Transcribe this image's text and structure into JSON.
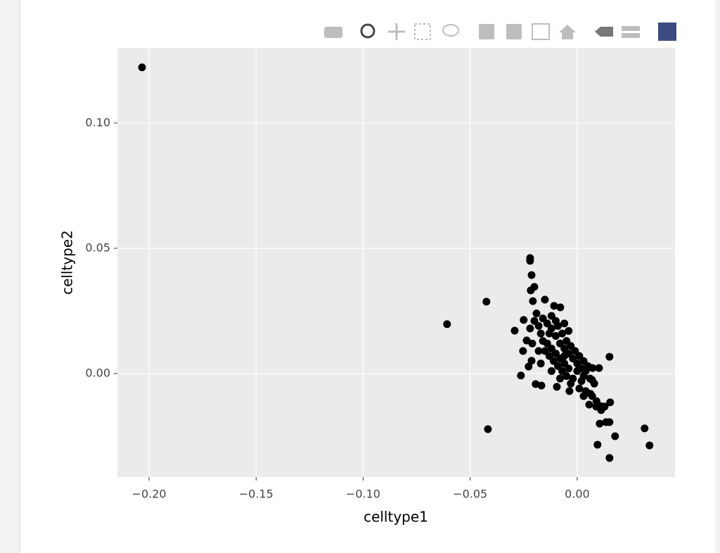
{
  "chart_data": {
    "type": "scatter",
    "xlabel": "celltype1",
    "ylabel": "celltype2",
    "color": "#000000",
    "grid": true,
    "xlim": [
      -0.2148,
      0.0457
    ],
    "ylim": [
      -0.0413,
      0.13
    ],
    "xticks": [
      {
        "value": -0.2,
        "label": "−0.20"
      },
      {
        "value": -0.15,
        "label": "−0.15"
      },
      {
        "value": -0.1,
        "label": "−0.10"
      },
      {
        "value": -0.05,
        "label": "−0.05"
      },
      {
        "value": 0,
        "label": "0.00"
      }
    ],
    "yticks": [
      {
        "value": 0,
        "label": "0.00"
      },
      {
        "value": 0.05,
        "label": "0.05"
      },
      {
        "value": 0.1,
        "label": "0.10"
      }
    ],
    "x": [
      -0.2033,
      -0.0608,
      -0.0424,
      -0.0417,
      0.0315,
      0.0338,
      0.0151,
      0.0177,
      0.0095,
      0.0151,
      -0.022,
      -0.022,
      -0.0213,
      -0.02,
      -0.0217,
      -0.0207,
      -0.0151,
      -0.0108,
      -0.0079,
      -0.0292,
      -0.025,
      -0.0236,
      -0.0253,
      -0.0263,
      -0.0227,
      -0.0213,
      -0.0194,
      -0.0167,
      -0.0095,
      -0.0036,
      0.003,
      0.0062,
      0.0069,
      0.0102,
      0.0072,
      0.0056,
      0.0089,
      0.0112,
      0.0128,
      0.0154,
      0.0105,
      0.0135,
      0.0151,
      -0.012,
      -0.01,
      -0.008,
      -0.006,
      -0.004,
      -0.002,
      0.0,
      0.002,
      -0.014,
      -0.012,
      -0.01,
      -0.008,
      -0.006,
      -0.004,
      -0.011,
      -0.009,
      -0.007,
      -0.005,
      -0.013,
      -0.015,
      -0.016,
      -0.017,
      -0.018,
      -0.02,
      -0.019,
      -0.014,
      -0.009,
      -0.007,
      -0.005,
      -0.003,
      -0.001,
      0.001,
      0.003,
      0.004,
      0.006,
      0.008,
      0.002,
      0.001,
      0.004,
      0.007,
      0.009,
      0.011,
      -0.003,
      -0.008,
      -0.012,
      -0.017,
      -0.018,
      -0.021,
      -0.022,
      -0.016,
      -0.012,
      -0.006,
      -0.004,
      -0.01,
      0.0,
      -0.002,
      0.005,
      0.003,
      -0.006,
      -0.013
    ],
    "values": [
      0.1222,
      0.0197,
      0.0287,
      -0.0222,
      -0.0219,
      -0.0287,
      -0.0337,
      -0.025,
      -0.0284,
      0.0067,
      0.0461,
      0.045,
      0.0393,
      0.0346,
      0.0332,
      0.0289,
      0.0295,
      0.027,
      0.0264,
      0.0171,
      0.0214,
      0.0132,
      0.009,
      -0.0008,
      0.0028,
      0.0051,
      -0.0042,
      -0.0048,
      -0.0053,
      -0.007,
      -0.009,
      -0.0081,
      -0.0025,
      0.0022,
      0.0022,
      -0.0124,
      -0.0132,
      -0.0146,
      -0.0132,
      -0.0115,
      -0.02,
      -0.0194,
      -0.0194,
      0.018,
      0.015,
      0.012,
      0.01,
      0.008,
      0.006,
      0.004,
      0.002,
      0.012,
      0.01,
      0.008,
      0.006,
      0.004,
      0.002,
      0.005,
      0.003,
      0.001,
      -0.001,
      0.007,
      0.009,
      0.013,
      0.016,
      0.019,
      0.021,
      0.024,
      0.02,
      0.019,
      0.016,
      0.013,
      0.011,
      0.009,
      0.007,
      0.005,
      0.001,
      -0.002,
      -0.004,
      -0.003,
      -0.006,
      -0.007,
      -0.009,
      -0.011,
      -0.013,
      -0.004,
      -0.002,
      0.001,
      0.004,
      0.009,
      0.012,
      0.018,
      0.022,
      0.023,
      0.02,
      0.017,
      0.021,
      0.001,
      -0.002,
      0.003,
      -0.001,
      0.007,
      0.016
    ]
  }
}
